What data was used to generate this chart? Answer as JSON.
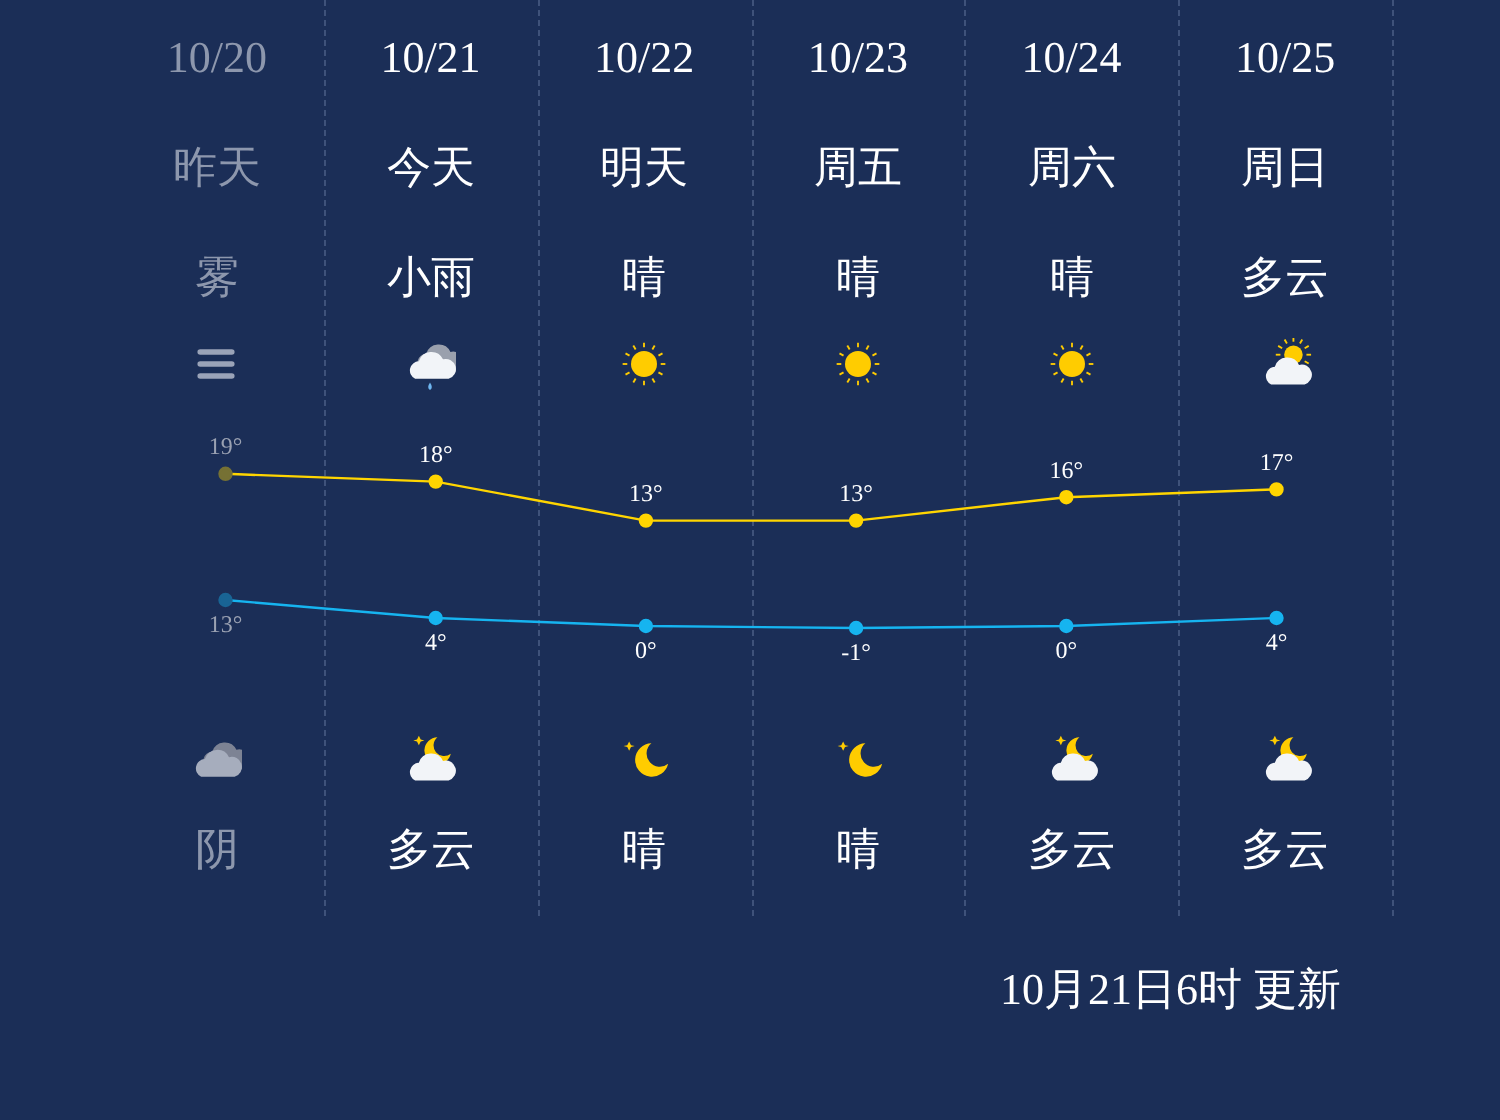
{
  "chart_data": [
    {
      "type": "line",
      "categories": [
        "10/20",
        "10/21",
        "10/22",
        "10/23",
        "10/24",
        "10/25"
      ],
      "series": [
        {
          "color": "#ffd500",
          "values": [
            19,
            18,
            13,
            13,
            16,
            17
          ],
          "value_labels": [
            "19°",
            "18°",
            "13°",
            "13°",
            "16°",
            "17°"
          ]
        }
      ],
      "marker": "circle",
      "legend": false,
      "annotations": [
        "昨天",
        "今天",
        "明天",
        "周五",
        "周六",
        "周日",
        "雾",
        "小雨",
        "晴",
        "晴",
        "晴",
        "多云"
      ]
    },
    {
      "type": "line",
      "categories": [
        null,
        null,
        null,
        null,
        null,
        null
      ],
      "series": [
        {
          "color": "#16b4f0",
          "values": [
            13,
            4,
            0,
            -1,
            0,
            4
          ],
          "value_labels": [
            "13°",
            "4°",
            "0°",
            "-1°",
            "0°",
            "4°"
          ]
        }
      ],
      "marker": "circle",
      "legend": false,
      "annotations": [
        "阴",
        "多云",
        "晴",
        "晴",
        "多云",
        "多云",
        "10月21日6时 更新"
      ]
    }
  ]
}
